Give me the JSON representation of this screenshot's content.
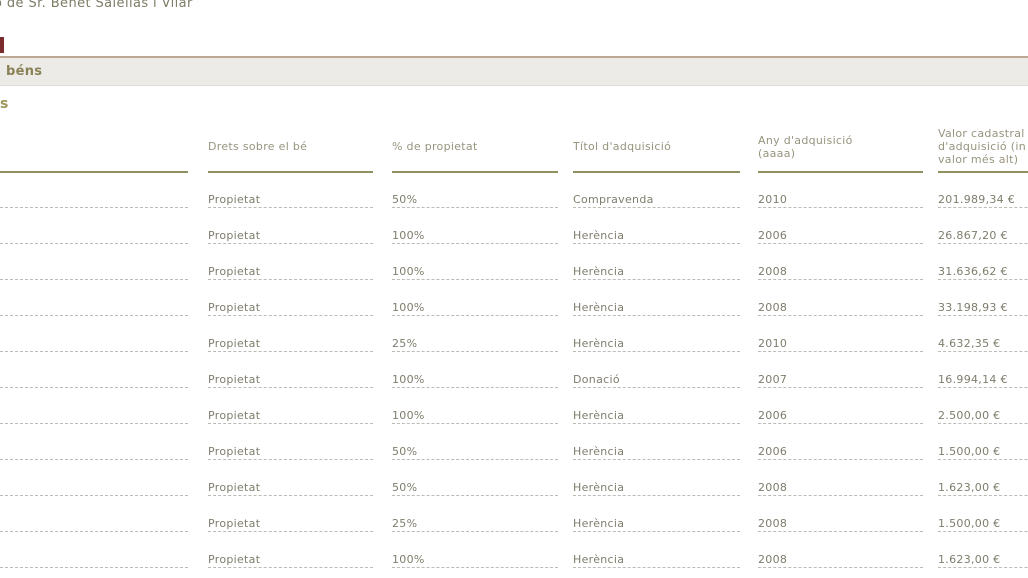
{
  "page": {
    "top_text": "ó de Sr. Benet Salellas i Vilar",
    "section_bar_label": "béns",
    "subsection_label": "s"
  },
  "table": {
    "columns": [
      {
        "label": ""
      },
      {
        "label": "Drets sobre el bé"
      },
      {
        "label": "% de propietat"
      },
      {
        "label": "Títol d'adquisició"
      },
      {
        "label": "Any d'adquisició\n(aaaa)"
      },
      {
        "label": "Valor cadastral\nd'adquisició (in\nvalor més alt)"
      }
    ],
    "rows": [
      {
        "drets": "Propietat",
        "pct": "50%",
        "titol": "Compravenda",
        "any": "2010",
        "valor": "201.989,34 €"
      },
      {
        "drets": "Propietat",
        "pct": "100%",
        "titol": "Herència",
        "any": "2006",
        "valor": "26.867,20 €"
      },
      {
        "drets": "Propietat",
        "pct": "100%",
        "titol": "Herència",
        "any": "2008",
        "valor": "31.636,62 €"
      },
      {
        "drets": "Propietat",
        "pct": "100%",
        "titol": "Herència",
        "any": "2008",
        "valor": "33.198,93 €"
      },
      {
        "drets": "Propietat",
        "pct": "25%",
        "titol": "Herència",
        "any": "2010",
        "valor": "4.632,35 €"
      },
      {
        "drets": "Propietat",
        "pct": "100%",
        "titol": "Donació",
        "any": "2007",
        "valor": "16.994,14 €"
      },
      {
        "drets": "Propietat",
        "pct": "100%",
        "titol": "Herència",
        "any": "2006",
        "valor": "2.500,00 €"
      },
      {
        "drets": "Propietat",
        "pct": "50%",
        "titol": "Herència",
        "any": "2006",
        "valor": "1.500,00 €"
      },
      {
        "drets": "Propietat",
        "pct": "50%",
        "titol": "Herència",
        "any": "2008",
        "valor": "1.623,00 €"
      },
      {
        "drets": "Propietat",
        "pct": "25%",
        "titol": "Herència",
        "any": "2008",
        "valor": "1.500,00 €"
      },
      {
        "drets": "Propietat",
        "pct": "100%",
        "titol": "Herència",
        "any": "2008",
        "valor": "1.623,00 €"
      }
    ]
  },
  "colors": {
    "accent_olive": "#8f9160",
    "section_bar_bg": "#edebe8",
    "divider_tan": "#bca894",
    "clipped_element_maroon": "#7b2b2b"
  }
}
